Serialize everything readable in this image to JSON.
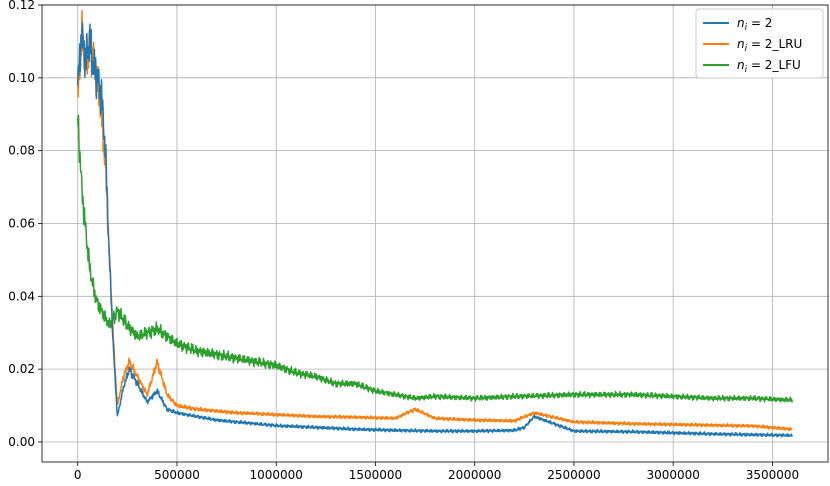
{
  "chart_data": {
    "type": "line",
    "title": "",
    "xlabel": "",
    "ylabel": "",
    "xlim": [
      -180000,
      3780000
    ],
    "ylim": [
      -0.0055,
      0.12
    ],
    "xticks": [
      0,
      500000,
      1000000,
      1500000,
      2000000,
      2500000,
      3000000,
      3500000
    ],
    "xtick_labels": [
      "0",
      "500000",
      "1000000",
      "1500000",
      "2000000",
      "2500000",
      "3000000",
      "3500000"
    ],
    "yticks": [
      0.0,
      0.02,
      0.04,
      0.06,
      0.08,
      0.1,
      0.12
    ],
    "ytick_labels": [
      "0.00",
      "0.02",
      "0.04",
      "0.06",
      "0.08",
      "0.10",
      "0.12"
    ],
    "grid": true,
    "legend_position": "top-right",
    "series": [
      {
        "name": "n_i = 2",
        "legend_main": "2",
        "legend_suffix": "",
        "color": "#1f77b4",
        "x": [
          0,
          20000,
          40000,
          60000,
          80000,
          100000,
          120000,
          140000,
          160000,
          180000,
          200000,
          230000,
          260000,
          300000,
          350000,
          400000,
          450000,
          500000,
          600000,
          700000,
          800000,
          900000,
          1000000,
          1200000,
          1400000,
          1600000,
          1800000,
          2000000,
          2200000,
          2250000,
          2300000,
          2500000,
          2800000,
          3000000,
          3200000,
          3400000,
          3600000
        ],
        "y": [
          0.098,
          0.112,
          0.105,
          0.11,
          0.103,
          0.1,
          0.095,
          0.08,
          0.05,
          0.025,
          0.007,
          0.015,
          0.02,
          0.016,
          0.011,
          0.014,
          0.009,
          0.008,
          0.007,
          0.006,
          0.0055,
          0.005,
          0.0045,
          0.004,
          0.0035,
          0.0032,
          0.003,
          0.003,
          0.0032,
          0.004,
          0.007,
          0.003,
          0.0028,
          0.0025,
          0.0022,
          0.002,
          0.0018
        ]
      },
      {
        "name": "n_i = 2_LRU",
        "legend_main": "2",
        "legend_suffix": "_LRU",
        "color": "#ff7f0e",
        "x": [
          0,
          20000,
          40000,
          60000,
          80000,
          100000,
          120000,
          140000,
          160000,
          180000,
          200000,
          230000,
          260000,
          300000,
          350000,
          400000,
          450000,
          500000,
          600000,
          700000,
          800000,
          900000,
          1000000,
          1200000,
          1400000,
          1600000,
          1700000,
          1800000,
          2000000,
          2200000,
          2300000,
          2500000,
          2800000,
          3000000,
          3200000,
          3400000,
          3600000
        ],
        "y": [
          0.094,
          0.112,
          0.104,
          0.11,
          0.104,
          0.098,
          0.09,
          0.075,
          0.05,
          0.028,
          0.01,
          0.018,
          0.022,
          0.018,
          0.013,
          0.022,
          0.013,
          0.01,
          0.009,
          0.0085,
          0.008,
          0.0078,
          0.0075,
          0.007,
          0.0068,
          0.0065,
          0.009,
          0.0065,
          0.006,
          0.0058,
          0.008,
          0.0055,
          0.005,
          0.0048,
          0.0046,
          0.0044,
          0.0035
        ]
      },
      {
        "name": "n_i = 2_LFU",
        "legend_main": "2",
        "legend_suffix": "_LFU",
        "color": "#2ca02c",
        "x": [
          0,
          20000,
          40000,
          60000,
          80000,
          100000,
          130000,
          160000,
          200000,
          250000,
          300000,
          350000,
          400000,
          450000,
          500000,
          600000,
          700000,
          800000,
          900000,
          1000000,
          1100000,
          1200000,
          1300000,
          1400000,
          1500000,
          1600000,
          1700000,
          1800000,
          2000000,
          2200000,
          2500000,
          2800000,
          3000000,
          3200000,
          3400000,
          3600000
        ],
        "y": [
          0.09,
          0.07,
          0.058,
          0.048,
          0.042,
          0.038,
          0.035,
          0.032,
          0.036,
          0.032,
          0.029,
          0.03,
          0.031,
          0.029,
          0.027,
          0.025,
          0.024,
          0.023,
          0.022,
          0.021,
          0.019,
          0.018,
          0.016,
          0.016,
          0.014,
          0.013,
          0.012,
          0.0125,
          0.012,
          0.0125,
          0.013,
          0.013,
          0.0125,
          0.012,
          0.012,
          0.0115
        ]
      }
    ]
  }
}
